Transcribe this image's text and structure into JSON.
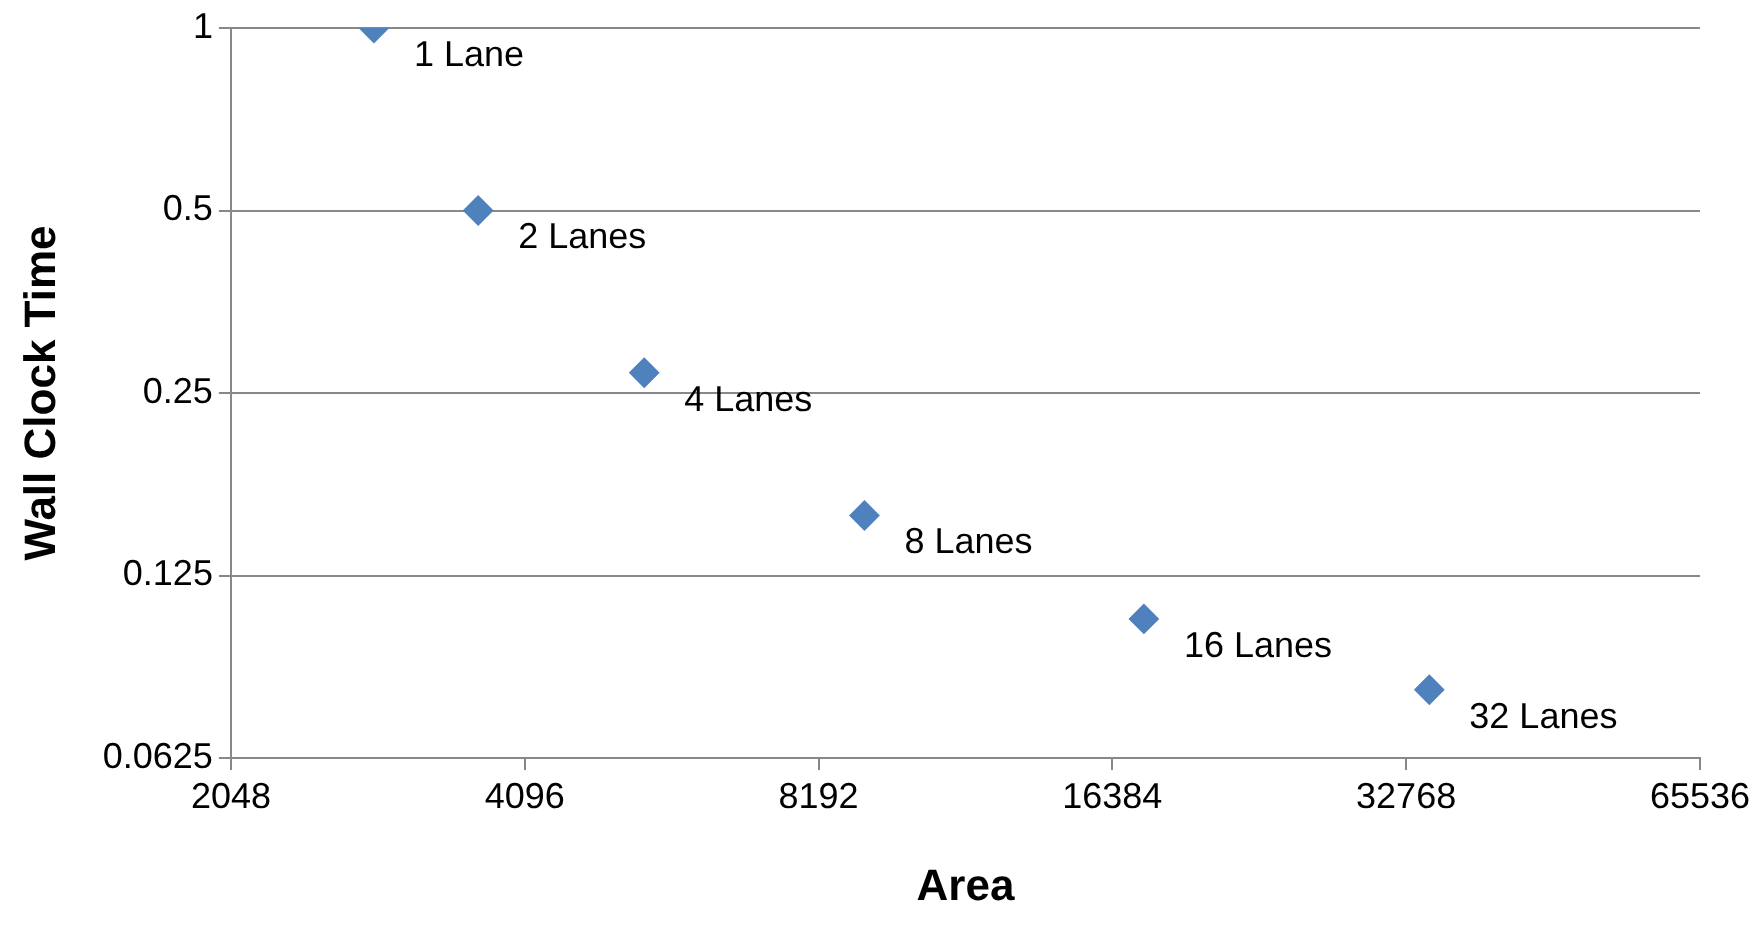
{
  "chart_data": {
    "type": "scatter",
    "xlabel": "Area",
    "ylabel": "Wall Clock Time",
    "x": [
      2870,
      3670,
      5430,
      9130,
      17650,
      34610
    ],
    "series": [
      {
        "color": "#4f81bd",
        "values": [
          1,
          0.5,
          0.27,
          0.157,
          0.106,
          0.081
        ]
      }
    ],
    "annotations": [
      {
        "text": "1 Lane",
        "x": 2870,
        "y": 1
      },
      {
        "text": "2 Lanes",
        "x": 3670,
        "y": 0.5
      },
      {
        "text": "4 Lanes",
        "x": 5430,
        "y": 0.27
      },
      {
        "text": "8 Lanes",
        "x": 9130,
        "y": 0.157
      },
      {
        "text": "16 Lanes",
        "x": 17650,
        "y": 0.106
      },
      {
        "text": "32 Lanes",
        "x": 34610,
        "y": 0.081
      }
    ],
    "xlim": [
      2048,
      65536
    ],
    "xticks": [
      2048,
      4096,
      8192,
      16384,
      32768,
      65536
    ],
    "ylim": [
      0.0625,
      1
    ],
    "yticks": [
      0.0625,
      0.125,
      0.25,
      0.5,
      1
    ],
    "log": "xy",
    "grid": "y",
    "legend": false,
    "marker": "diamond"
  }
}
